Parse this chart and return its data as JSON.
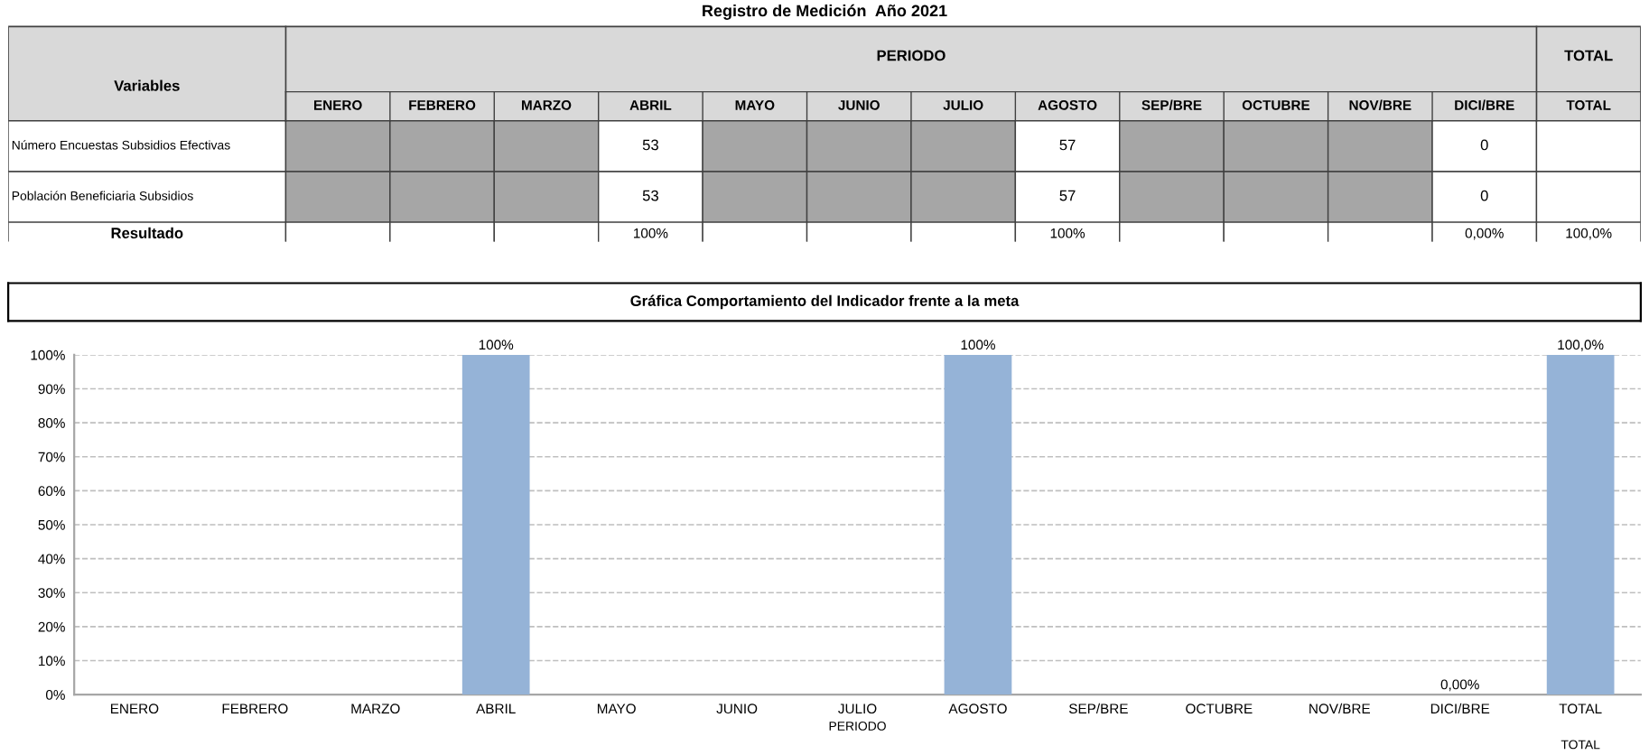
{
  "chart_data": [
    {
      "type": "other",
      "title": "Registro de Medición  Año 2021",
      "annotations": [
        "Variables",
        "PERIODO",
        "TOTAL"
      ],
      "categories": [
        "ENERO",
        "FEBRERO",
        "MARZO",
        "ABRIL",
        "MAYO",
        "JUNIO",
        "JULIO",
        "AGOSTO",
        "SEP/BRE",
        "OCTUBRE",
        "NOV/BRE",
        "DICI/BRE",
        "TOTAL"
      ],
      "y_categories": [
        "Número Encuestas Subsidios Efectivas",
        "Población Beneficiaria Subsidios",
        "Resultado"
      ],
      "cell_labels": [
        [
          null,
          null,
          null,
          "53",
          null,
          null,
          null,
          "57",
          null,
          null,
          null,
          "0",
          null
        ],
        [
          null,
          null,
          null,
          "53",
          null,
          null,
          null,
          "57",
          null,
          null,
          null,
          "0",
          null
        ],
        [
          null,
          null,
          null,
          "100%",
          null,
          null,
          null,
          "100%",
          null,
          null,
          null,
          "0,00%",
          "100,0%"
        ]
      ]
    },
    {
      "type": "bar",
      "title": "Gráfica Comportamiento del Indicador frente a la meta",
      "xlabel": "PERIODO",
      "annotations": [
        "TOTAL"
      ],
      "categories": [
        "ENERO",
        "FEBRERO",
        "MARZO",
        "ABRIL",
        "MAYO",
        "JUNIO",
        "JULIO",
        "AGOSTO",
        "SEP/BRE",
        "OCTUBRE",
        "NOV/BRE",
        "DICI/BRE",
        "TOTAL"
      ],
      "series": [
        {
          "color": "#95b3d7",
          "values": [
            null,
            null,
            null,
            100,
            null,
            null,
            null,
            100,
            null,
            null,
            null,
            0,
            100
          ],
          "value_labels": [
            null,
            null,
            null,
            "100%",
            null,
            null,
            null,
            "100%",
            null,
            null,
            null,
            "0,00%",
            "100,0%"
          ]
        }
      ],
      "ylim": [
        0,
        100
      ],
      "yticks": [
        {
          "value": 0,
          "label": "0%"
        },
        {
          "value": 10,
          "label": "10%"
        },
        {
          "value": 20,
          "label": "20%"
        },
        {
          "value": 30,
          "label": "30%"
        },
        {
          "value": 40,
          "label": "40%"
        },
        {
          "value": 50,
          "label": "50%"
        },
        {
          "value": 60,
          "label": "60%"
        },
        {
          "value": 70,
          "label": "70%"
        },
        {
          "value": 80,
          "label": "80%"
        },
        {
          "value": 90,
          "label": "90%"
        },
        {
          "value": 100,
          "label": "100%"
        }
      ],
      "grid": "y"
    }
  ]
}
